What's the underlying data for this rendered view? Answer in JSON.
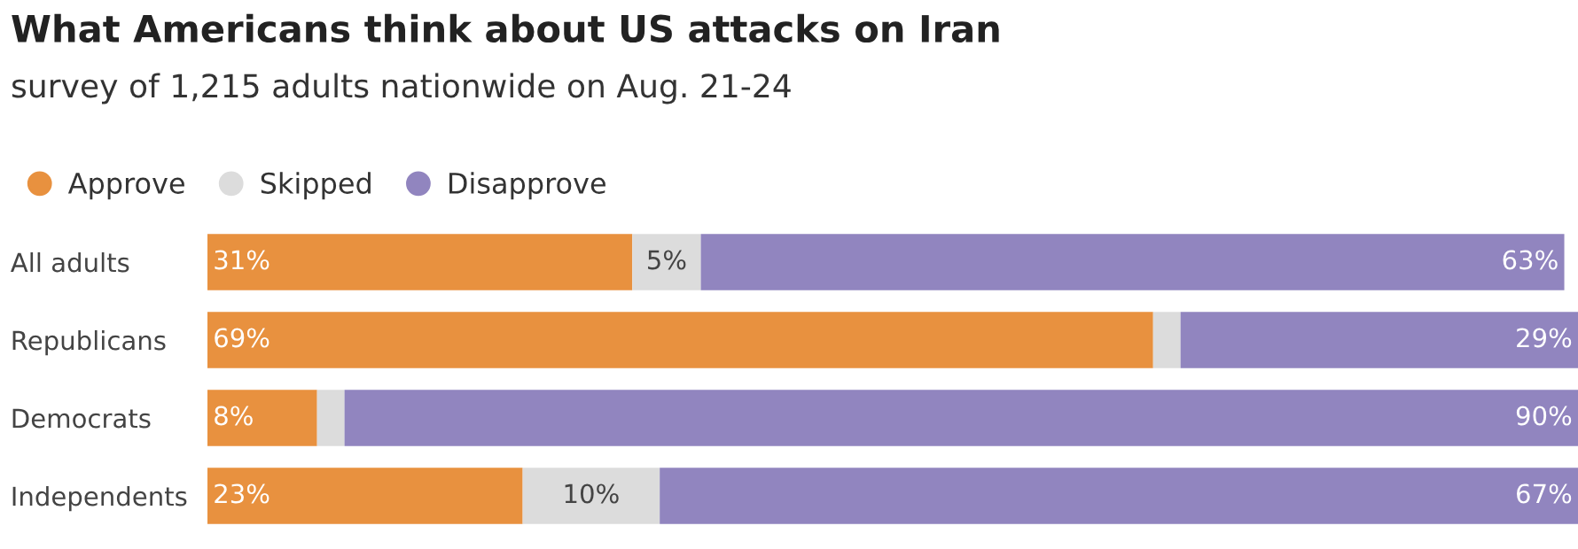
{
  "chart_data": {
    "type": "bar",
    "orientation": "horizontal",
    "stacked": true,
    "title": "What Americans think about US attacks on Iran",
    "subtitle": "survey of 1,215 adults nationwide on Aug. 21-24",
    "categories": [
      "All adults",
      "Republicans",
      "Democrats",
      "Independents"
    ],
    "xlim": [
      0,
      100
    ],
    "tick_labels": "y",
    "grid": false,
    "legend": "top left",
    "series": [
      {
        "name": "Approve",
        "color": "#e8913f",
        "values": [
          31,
          69,
          8,
          23
        ],
        "value_labels": [
          "31%",
          "69%",
          "8%",
          "23%"
        ]
      },
      {
        "name": "Skipped",
        "color": "#dcdcdc",
        "values": [
          5,
          2,
          2,
          10
        ],
        "value_labels": [
          "5%",
          null,
          null,
          "10%"
        ]
      },
      {
        "name": "Disapprove",
        "color": "#9185bf",
        "values": [
          63,
          29,
          90,
          67
        ],
        "value_labels": [
          "63%",
          "29%",
          "90%",
          "67%"
        ]
      }
    ]
  }
}
